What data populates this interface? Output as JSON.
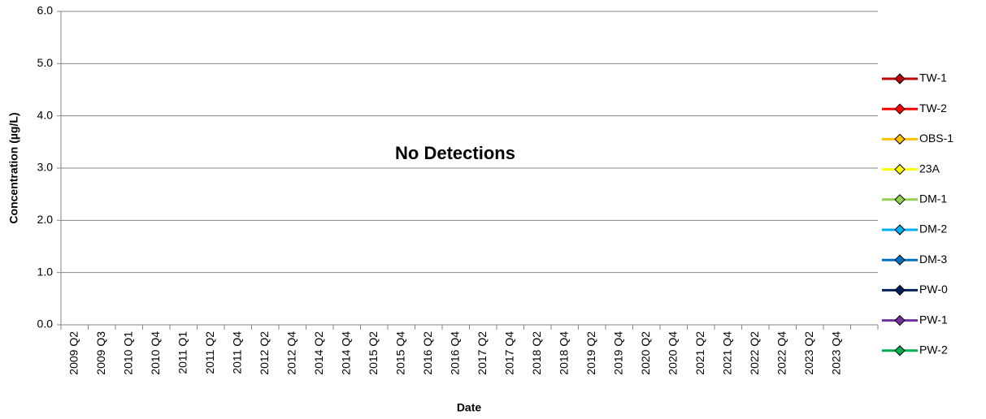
{
  "chart_data": {
    "type": "line",
    "annotation": "No Detections",
    "x_label": "Date",
    "y_label": "Concentration (µg/L)",
    "categories": [
      "2009 Q2",
      "2009 Q3",
      "2010 Q1",
      "2010 Q4",
      "2011 Q1",
      "2011 Q2",
      "2011 Q4",
      "2012 Q2",
      "2012 Q4",
      "2014 Q2",
      "2014 Q4",
      "2015 Q2",
      "2015 Q4",
      "2016 Q2",
      "2016 Q4",
      "2017 Q2",
      "2017 Q4",
      "2018 Q2",
      "2018 Q4",
      "2019 Q2",
      "2019 Q4",
      "2020 Q2",
      "2020 Q4",
      "2021 Q2",
      "2021 Q4",
      "2022 Q2",
      "2022 Q4",
      "2023 Q2",
      "2023 Q4",
      null
    ],
    "series": [
      {
        "name": "TW-1",
        "color": "#c00000",
        "values": [
          null,
          null,
          null,
          null,
          null,
          null,
          null,
          null,
          null,
          null,
          null,
          null,
          null,
          null,
          null,
          null,
          null,
          null,
          null,
          null,
          null,
          null,
          null,
          null,
          null,
          null,
          null,
          null,
          null,
          null
        ]
      },
      {
        "name": "TW-2",
        "color": "#ff0000",
        "values": [
          null,
          null,
          null,
          null,
          null,
          null,
          null,
          null,
          null,
          null,
          null,
          null,
          null,
          null,
          null,
          null,
          null,
          null,
          null,
          null,
          null,
          null,
          null,
          null,
          null,
          null,
          null,
          null,
          null,
          null
        ]
      },
      {
        "name": "OBS-1",
        "color": "#ffc000",
        "values": [
          null,
          null,
          null,
          null,
          null,
          null,
          null,
          null,
          null,
          null,
          null,
          null,
          null,
          null,
          null,
          null,
          null,
          null,
          null,
          null,
          null,
          null,
          null,
          null,
          null,
          null,
          null,
          null,
          null,
          null
        ]
      },
      {
        "name": "23A",
        "color": "#ffff00",
        "values": [
          null,
          null,
          null,
          null,
          null,
          null,
          null,
          null,
          null,
          null,
          null,
          null,
          null,
          null,
          null,
          null,
          null,
          null,
          null,
          null,
          null,
          null,
          null,
          null,
          null,
          null,
          null,
          null,
          null,
          null
        ]
      },
      {
        "name": "DM-1",
        "color": "#92d050",
        "values": [
          null,
          null,
          null,
          null,
          null,
          null,
          null,
          null,
          null,
          null,
          null,
          null,
          null,
          null,
          null,
          null,
          null,
          null,
          null,
          null,
          null,
          null,
          null,
          null,
          null,
          null,
          null,
          null,
          null,
          null
        ]
      },
      {
        "name": "DM-2",
        "color": "#00b0f0",
        "values": [
          null,
          null,
          null,
          null,
          null,
          null,
          null,
          null,
          null,
          null,
          null,
          null,
          null,
          null,
          null,
          null,
          null,
          null,
          null,
          null,
          null,
          null,
          null,
          null,
          null,
          null,
          null,
          null,
          null,
          null
        ]
      },
      {
        "name": "DM-3",
        "color": "#0070c0",
        "values": [
          null,
          null,
          null,
          null,
          null,
          null,
          null,
          null,
          null,
          null,
          null,
          null,
          null,
          null,
          null,
          null,
          null,
          null,
          null,
          null,
          null,
          null,
          null,
          null,
          null,
          null,
          null,
          null,
          null,
          null
        ]
      },
      {
        "name": "PW-0",
        "color": "#002060",
        "values": [
          null,
          null,
          null,
          null,
          null,
          null,
          null,
          null,
          null,
          null,
          null,
          null,
          null,
          null,
          null,
          null,
          null,
          null,
          null,
          null,
          null,
          null,
          null,
          null,
          null,
          null,
          null,
          null,
          null,
          null
        ]
      },
      {
        "name": "PW-1",
        "color": "#7030a0",
        "values": [
          null,
          null,
          null,
          null,
          null,
          null,
          null,
          null,
          null,
          null,
          null,
          null,
          null,
          null,
          null,
          null,
          null,
          null,
          null,
          null,
          null,
          null,
          null,
          null,
          null,
          null,
          null,
          null,
          null,
          null
        ]
      },
      {
        "name": "PW-2",
        "color": "#00b050",
        "values": [
          null,
          null,
          null,
          null,
          null,
          null,
          null,
          null,
          null,
          null,
          null,
          null,
          null,
          null,
          null,
          null,
          null,
          null,
          null,
          null,
          null,
          null,
          null,
          null,
          null,
          null,
          null,
          null,
          null,
          null
        ]
      }
    ],
    "ylim": [
      0,
      6
    ],
    "yticks": [
      {
        "value": 0,
        "label": "0.0"
      },
      {
        "value": 1,
        "label": "1.0"
      },
      {
        "value": 2,
        "label": "2.0"
      },
      {
        "value": 3,
        "label": "3.0"
      },
      {
        "value": 4,
        "label": "4.0"
      },
      {
        "value": 5,
        "label": "5.0"
      },
      {
        "value": 6,
        "label": "6.0"
      }
    ],
    "grid": true,
    "legend": "right"
  }
}
